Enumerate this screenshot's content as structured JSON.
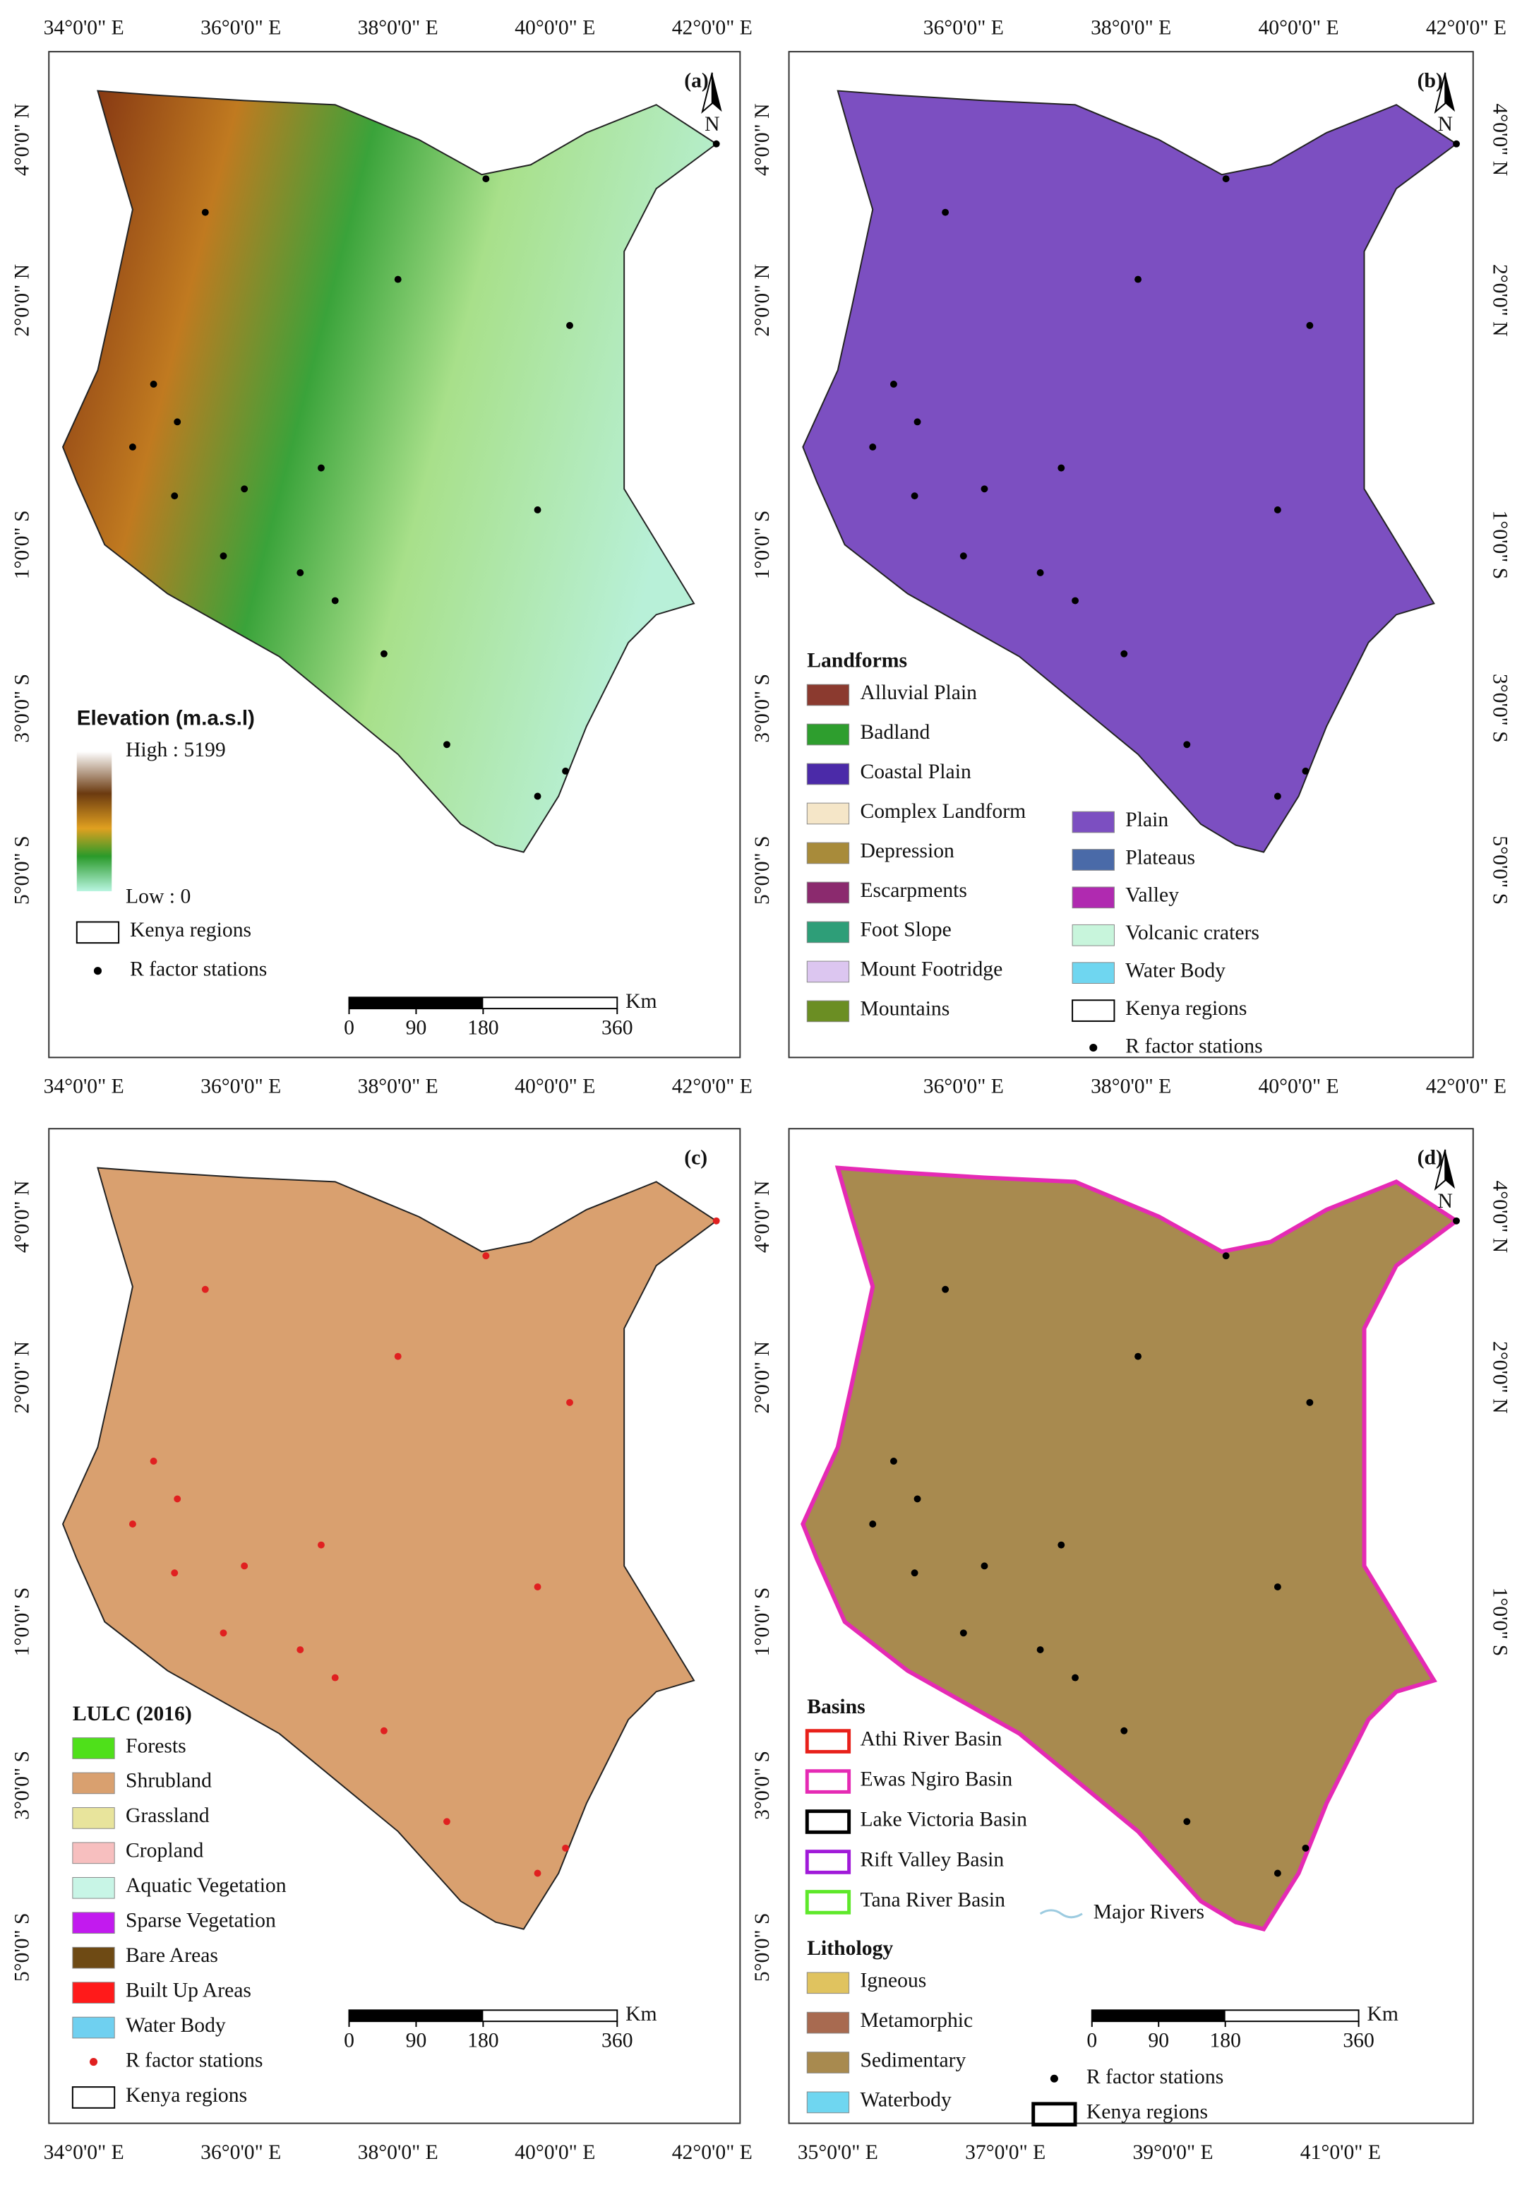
{
  "panels": [
    {
      "label": "(a)",
      "north": "N",
      "top": [
        "34°0'0\" E",
        "36°0'0\" E",
        "38°0'0\" E",
        "40°0'0\" E",
        "42°0'0\" E"
      ],
      "bottom": [
        "34°0'0\" E",
        "36°0'0\" E",
        "38°0'0\" E",
        "40°0'0\" E",
        "42°0'0\" E"
      ],
      "left": [
        "4°0'0\" N",
        "2°0'0\" N",
        "1°0'0\" S",
        "3°0'0\" S",
        "5°0'0\" S"
      ],
      "right": [],
      "legend": [
        {
          "title": "Elevation (m.a.s.l)",
          "ramp": {
            "high": "High : 5199",
            "low": "Low : 0"
          }
        },
        {
          "items": [
            {
              "label": "Kenya regions",
              "symbol": "outline",
              "color": "#000000"
            },
            {
              "label": "R factor stations",
              "symbol": "dot",
              "color": "#000000"
            }
          ]
        }
      ],
      "scale": {
        "ticks": [
          0,
          90,
          180,
          360
        ],
        "unit": "Km"
      }
    },
    {
      "label": "(b)",
      "north": "N",
      "top": [
        "36°0'0\" E",
        "38°0'0\" E",
        "40°0'0\" E",
        "42°0'0\" E"
      ],
      "bottom": [
        "36°0'0\" E",
        "38°0'0\" E",
        "40°0'0\" E",
        "42°0'0\" E"
      ],
      "left": [
        "4°0'0\" N",
        "2°0'0\" N",
        "1°0'0\" S",
        "3°0'0\" S",
        "5°0'0\" S"
      ],
      "right": [
        "4°0'0\" N",
        "2°0'0\" N",
        "1°0'0\" S",
        "3°0'0\" S",
        "5°0'0\" S"
      ],
      "legend": [
        {
          "title": "Landforms",
          "items": [
            {
              "label": "Alluvial Plain",
              "symbol": "fill",
              "color": "#8b3a2f"
            },
            {
              "label": "Badland",
              "symbol": "fill",
              "color": "#2e9e2e"
            },
            {
              "label": "Coastal Plain",
              "symbol": "fill",
              "color": "#4b2aa8"
            },
            {
              "label": "Complex Landform",
              "symbol": "fill",
              "color": "#f5e6c8"
            },
            {
              "label": "Depression",
              "symbol": "fill",
              "color": "#a88b3a"
            },
            {
              "label": "Escarpments",
              "symbol": "fill",
              "color": "#8b2a6e"
            },
            {
              "label": "Foot Slope",
              "symbol": "fill",
              "color": "#2e9e78"
            },
            {
              "label": "Mount Footridge",
              "symbol": "fill",
              "color": "#dcc6f0"
            },
            {
              "label": "Mountains",
              "symbol": "fill",
              "color": "#6b8e23"
            }
          ]
        },
        {
          "items": [
            {
              "label": "Plain",
              "symbol": "fill",
              "color": "#7c4fc1"
            },
            {
              "label": "Plateaus",
              "symbol": "fill",
              "color": "#4a6aa8"
            },
            {
              "label": "Valley",
              "symbol": "fill",
              "color": "#b02ab0"
            },
            {
              "label": "Volcanic craters",
              "symbol": "fill",
              "color": "#c8f5dc"
            },
            {
              "label": "Water Body",
              "symbol": "fill",
              "color": "#6fd6f0"
            },
            {
              "label": "Kenya regions",
              "symbol": "outline",
              "color": "#000000"
            },
            {
              "label": "R factor stations",
              "symbol": "dot",
              "color": "#000000"
            }
          ]
        }
      ]
    },
    {
      "label": "(c)",
      "top": [],
      "bottom": [
        "34°0'0\" E",
        "36°0'0\" E",
        "38°0'0\" E",
        "40°0'0\" E",
        "42°0'0\" E"
      ],
      "left": [
        "4°0'0\" N",
        "2°0'0\" N",
        "1°0'0\" S",
        "3°0'0\" S",
        "5°0'0\" S"
      ],
      "right": [],
      "legend": [
        {
          "title": "LULC (2016)",
          "items": [
            {
              "label": "Forests",
              "symbol": "fill",
              "color": "#4fe01a"
            },
            {
              "label": "Shrubland",
              "symbol": "fill",
              "color": "#d9a06f"
            },
            {
              "label": "Grassland",
              "symbol": "fill",
              "color": "#e8e49c"
            },
            {
              "label": "Cropland",
              "symbol": "fill",
              "color": "#f7bfbf"
            },
            {
              "label": "Aquatic Vegetation",
              "symbol": "fill",
              "color": "#c8f5e6"
            },
            {
              "label": "Sparse Vegetation",
              "symbol": "fill",
              "color": "#c21aef"
            },
            {
              "label": "Bare Areas",
              "symbol": "fill",
              "color": "#6e4a14"
            },
            {
              "label": "Built Up Areas",
              "symbol": "fill",
              "color": "#ff1a1a"
            },
            {
              "label": "Water Body",
              "symbol": "fill",
              "color": "#6fd0f0"
            },
            {
              "label": "R factor stations",
              "symbol": "dot",
              "color": "#e02020"
            },
            {
              "label": "Kenya regions",
              "symbol": "outline",
              "color": "#000000"
            }
          ]
        }
      ],
      "scale": {
        "ticks": [
          0,
          90,
          180,
          360
        ],
        "unit": "Km"
      }
    },
    {
      "label": "(d)",
      "north": "N",
      "top": [],
      "bottom": [
        "35°0'0\" E",
        "37°0'0\" E",
        "39°0'0\" E",
        "41°0'0\" E"
      ],
      "left": [
        "4°0'0\" N",
        "2°0'0\" N",
        "1°0'0\" S",
        "3°0'0\" S",
        "5°0'0\" S"
      ],
      "right": [
        "4°0'0\" N",
        "2°0'0\" N",
        "1°0'0\" S"
      ],
      "legend": [
        {
          "title": "Basins",
          "items": [
            {
              "label": "Athi River Basin",
              "symbol": "outline",
              "color": "#e8201a"
            },
            {
              "label": "Ewas Ngiro Basin",
              "symbol": "outline",
              "color": "#e52ab4"
            },
            {
              "label": "Lake Victoria Basin",
              "symbol": "outline",
              "color": "#000000"
            },
            {
              "label": "Rift Valley Basin",
              "symbol": "outline",
              "color": "#a01ad9"
            },
            {
              "label": "Tana River Basin",
              "symbol": "outline",
              "color": "#5ee82a"
            }
          ]
        },
        {
          "items": [
            {
              "label": "Major Rivers",
              "symbol": "line",
              "color": "#9ccbe0"
            }
          ]
        },
        {
          "title": "Lithology",
          "items": [
            {
              "label": "Igneous",
              "symbol": "fill",
              "color": "#e0c35f"
            },
            {
              "label": "Metamorphic",
              "symbol": "fill",
              "color": "#a86a50"
            },
            {
              "label": "Sedimentary",
              "symbol": "fill",
              "color": "#a88a4f"
            },
            {
              "label": "Waterbody",
              "symbol": "fill",
              "color": "#6fd6f0"
            }
          ]
        },
        {
          "items": [
            {
              "label": "R factor stations",
              "symbol": "dot",
              "color": "#000000"
            },
            {
              "label": "Kenya regions",
              "symbol": "outline",
              "color": "#000000"
            }
          ]
        }
      ],
      "scale": {
        "ticks": [
          0,
          90,
          180,
          360
        ],
        "unit": "Km"
      }
    }
  ]
}
